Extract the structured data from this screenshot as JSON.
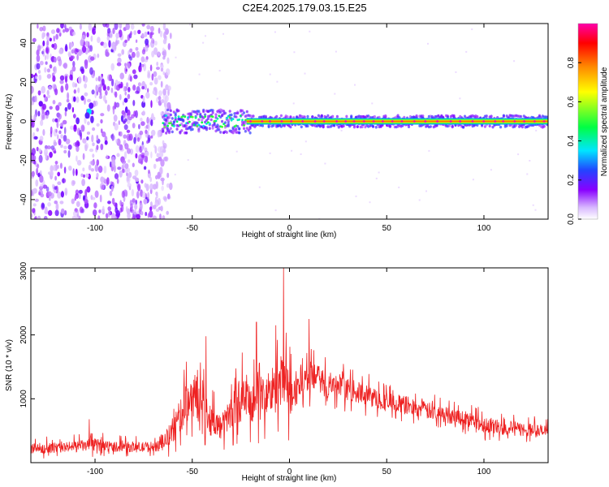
{
  "title": "C2E4.2025.179.03.15.E25",
  "colors": {
    "snr_line": "#ee2222",
    "frame": "#000000",
    "colormap": [
      "#ffffff",
      "#d8b8ff",
      "#8800ff",
      "#2244ff",
      "#00e5ff",
      "#00ff44",
      "#ffff00",
      "#ff8800",
      "#ff0000",
      "#ff00aa"
    ]
  },
  "chart_data": [
    {
      "type": "heatmap",
      "name": "spectrogram",
      "xlabel": "Height of straight line (km)",
      "ylabel": "Frequency (Hz)",
      "xlim": [
        -133,
        133
      ],
      "ylim": [
        -50,
        50
      ],
      "x_ticks": [
        -100,
        -50,
        0,
        50,
        100
      ],
      "y_ticks": [
        40,
        20,
        0,
        -20,
        -40
      ],
      "colorbar_label": "Normalized spectral amplitude",
      "colorbar_range": [
        0,
        1
      ],
      "colorbar_ticks": [
        "0.0",
        "0.2",
        "0.4",
        "0.6",
        "0.8"
      ],
      "features": {
        "noise_region_x": [
          -133,
          -65
        ],
        "noise_strong_x": [
          -133,
          -70
        ],
        "signal_start_x": -65,
        "carrier_frequency": 0,
        "carrier_peak_amplitude": 1.0,
        "spread_hz_near_start": 6,
        "spread_hz_far": 3
      }
    },
    {
      "type": "line",
      "name": "snr",
      "xlabel": "Height of straight line (km)",
      "ylabel": "SNR (10 * v/v)",
      "xlim": [
        -133,
        133
      ],
      "ylim": [
        0,
        3050
      ],
      "x_ticks": [
        -100,
        -50,
        0,
        50,
        100
      ],
      "y_ticks": [
        1000,
        2000,
        3000
      ],
      "grid": false,
      "envelope": {
        "x": [
          -133,
          -115,
          -100,
          -90,
          -75,
          -66,
          -60,
          -55,
          -50,
          -45,
          -40,
          -35,
          -30,
          -25,
          -20,
          -15,
          -10,
          -5,
          -3,
          0,
          5,
          10,
          15,
          20,
          30,
          40,
          50,
          60,
          70,
          80,
          90,
          100,
          110,
          120,
          133
        ],
        "y_mean": [
          220,
          240,
          280,
          250,
          240,
          260,
          500,
          800,
          1100,
          900,
          650,
          550,
          800,
          1000,
          900,
          1000,
          1100,
          1200,
          1300,
          1000,
          1250,
          1350,
          1300,
          1200,
          1150,
          1050,
          950,
          900,
          820,
          750,
          700,
          600,
          550,
          520,
          480
        ],
        "y_spread": [
          150,
          150,
          180,
          150,
          150,
          150,
          400,
          500,
          700,
          600,
          450,
          350,
          500,
          650,
          600,
          700,
          700,
          800,
          900,
          700,
          500,
          450,
          400,
          350,
          320,
          300,
          280,
          270,
          250,
          240,
          230,
          230,
          220,
          200,
          200
        ]
      },
      "peaks": [
        {
          "x": -3,
          "y": 3050
        },
        {
          "x": 10,
          "y": 2250
        },
        {
          "x": -43,
          "y": 1980
        },
        {
          "x": -17,
          "y": 2200
        },
        {
          "x": -7,
          "y": 2150
        },
        {
          "x": -103,
          "y": 680
        }
      ]
    }
  ]
}
